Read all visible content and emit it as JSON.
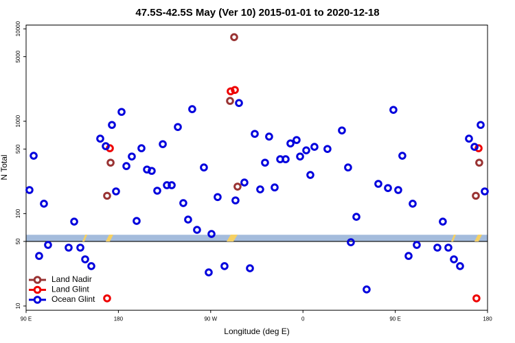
{
  "chart_data": {
    "type": "scatter",
    "title": "47.5S-42.5S May (Ver 10)   2015-01-01 to 2020-12-18",
    "x_label": "Longitude (deg E)",
    "y_label": "N Total",
    "log_y": true,
    "legend_position": "lower left",
    "xlim": [
      90,
      540
    ],
    "ylim": [
      9,
      11000
    ],
    "xticks": [
      {
        "value": 90,
        "label": "90 E"
      },
      {
        "value": 180,
        "label": "180"
      },
      {
        "value": 270,
        "label": "90 W"
      },
      {
        "value": 360,
        "label": "0"
      },
      {
        "value": 450,
        "label": "90 E"
      },
      {
        "value": 540,
        "label": "180"
      }
    ],
    "yticks": [
      10,
      50,
      100,
      500,
      1000,
      5000,
      10000
    ],
    "shaded_band": [
      50,
      59
    ],
    "band_color": "#a4bcdc",
    "series": [
      {
        "name": "Land Nadir",
        "color": "#993333",
        "x": [
          169.0,
          172.4,
          288.9,
          292.9,
          296.2,
          528.6,
          531.9
        ],
        "values": [
          156,
          356,
          1660,
          8130,
          196,
          156,
          356
        ]
      },
      {
        "name": "Land Glint",
        "color": "#ee0000",
        "x": [
          169.0,
          171.7,
          289.5,
          293.6,
          529.2,
          531.3
        ],
        "values": [
          12.1,
          510,
          2108,
          2180,
          12.1,
          510
        ]
      },
      {
        "name": "Ocean Glint",
        "color": "#0000dd",
        "x": [
          93.3,
          97.4,
          102.7,
          107.4,
          111.4,
          131.5,
          136.9,
          142.9,
          147.6,
          153.6,
          162.3,
          167.7,
          173.7,
          177.7,
          183.1,
          187.8,
          193.1,
          197.8,
          202.5,
          207.9,
          212.5,
          217.9,
          223.3,
          227.3,
          232.0,
          238.0,
          243.3,
          248.0,
          252.0,
          256.7,
          263.4,
          268.1,
          270.8,
          276.8,
          283.5,
          294.2,
          297.6,
          302.9,
          308.3,
          313.0,
          318.3,
          323.0,
          327.0,
          332.4,
          337.8,
          343.1,
          347.8,
          353.8,
          357.2,
          363.2,
          367.2,
          371.2,
          383.9,
          398.0,
          404.0,
          406.7,
          412.1,
          422.1,
          433.5,
          442.9,
          448.2,
          452.9,
          456.9,
          463.0,
          467.0,
          471.0,
          491.1,
          496.4,
          501.8,
          507.2,
          513.2,
          521.9,
          527.3,
          533.3,
          537.3
        ],
        "values": [
          180,
          423,
          34.8,
          128,
          45.8,
          42.8,
          81.9,
          42.8,
          32.0,
          27.0,
          648,
          537,
          912,
          174,
          1262,
          327,
          415,
          83.3,
          510,
          300,
          290,
          177,
          565,
          203,
          203,
          866,
          130,
          86.2,
          1352,
          66.7,
          316,
          23.1,
          60.2,
          151,
          27.0,
          139,
          1575,
          217,
          25.6,
          730,
          183,
          356,
          682,
          192,
          388,
          388,
          575,
          626,
          415,
          484,
          262,
          528,
          501,
          795,
          316,
          49.0,
          92.3,
          15.1,
          210,
          189,
          1328,
          180,
          423,
          34.8,
          128,
          45.8,
          42.8,
          81.9,
          42.8,
          32.0,
          27.0,
          648,
          528,
          912,
          174
        ]
      }
    ]
  }
}
